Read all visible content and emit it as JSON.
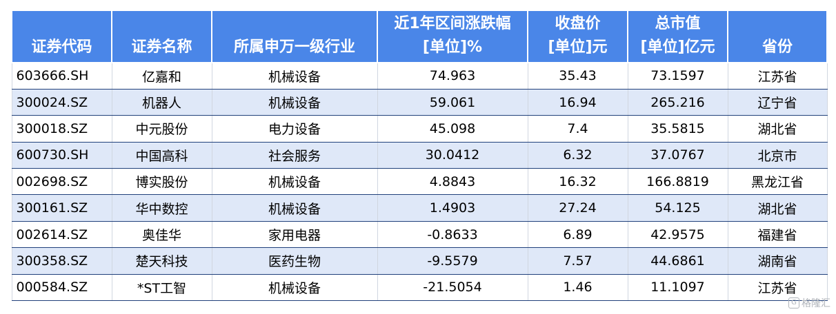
{
  "table": {
    "headers": [
      [
        "证券代码"
      ],
      [
        "证券名称"
      ],
      [
        "所属申万一级行业"
      ],
      [
        "近1年区间涨跌幅",
        "[单位]%"
      ],
      [
        "收盘价",
        "[单位]元"
      ],
      [
        "总市值",
        "[单位]亿元"
      ],
      [
        "省份"
      ]
    ],
    "rows": [
      [
        "603666.SH",
        "亿嘉和",
        "机械设备",
        "74.963",
        "35.43",
        "73.1597",
        "江苏省"
      ],
      [
        "300024.SZ",
        "机器人",
        "机械设备",
        "59.061",
        "16.94",
        "265.216",
        "辽宁省"
      ],
      [
        "300018.SZ",
        "中元股份",
        "电力设备",
        "45.098",
        "7.4",
        "35.5815",
        "湖北省"
      ],
      [
        "600730.SH",
        "中国高科",
        "社会服务",
        "30.0412",
        "6.32",
        "37.0767",
        "北京市"
      ],
      [
        "002698.SZ",
        "博实股份",
        "机械设备",
        "4.8843",
        "16.32",
        "166.8819",
        "黑龙江省"
      ],
      [
        "300161.SZ",
        "华中数控",
        "机械设备",
        "1.4903",
        "27.24",
        "54.125",
        "湖北省"
      ],
      [
        "002614.SZ",
        "奥佳华",
        "家用电器",
        "-0.8633",
        "6.89",
        "42.9575",
        "福建省"
      ],
      [
        "300358.SZ",
        "楚天科技",
        "医药生物",
        "-9.5579",
        "7.57",
        "44.6861",
        "湖南省"
      ],
      [
        "000584.SZ",
        "*ST工智",
        "机械设备",
        "-21.5054",
        "1.46",
        "11.1097",
        "江苏省"
      ]
    ]
  },
  "watermark": {
    "logo_glyph": "G",
    "text": "格隆汇"
  },
  "colors": {
    "header_bg": "#4a86e8",
    "row_alt_bg": "#dfe8f8"
  }
}
